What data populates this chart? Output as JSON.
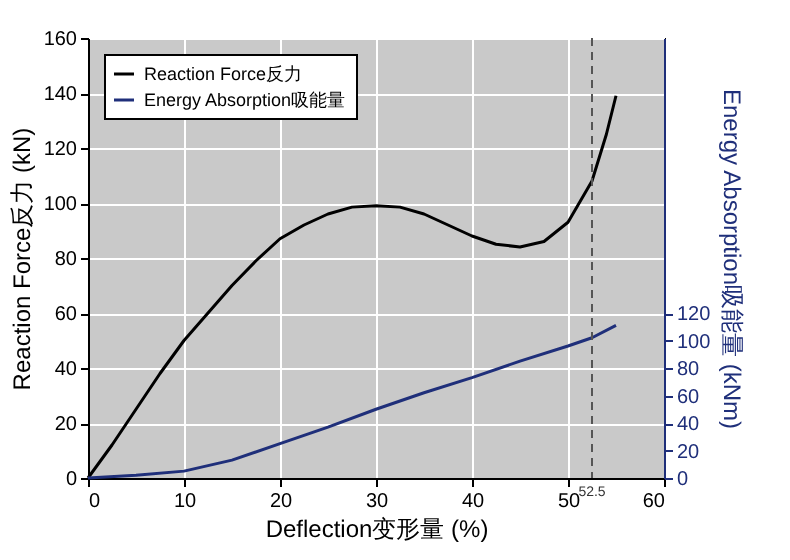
{
  "chart_data": {
    "type": "line",
    "xlabel": "Deflection变形量 (%)",
    "ylabel": "Reaction Force反力 (kN)",
    "y2label": "Energy Absorption吸能量 (kNm)",
    "xlim": [
      0,
      60
    ],
    "xticks": [
      0,
      10,
      20,
      30,
      40,
      50,
      60
    ],
    "ylim": [
      0,
      160
    ],
    "yticks": [
      0,
      20,
      40,
      60,
      80,
      100,
      120,
      140,
      160
    ],
    "y2lim": [
      0,
      320
    ],
    "y2ticks": [
      0,
      20,
      40,
      60,
      80,
      100,
      120
    ],
    "grid": true,
    "legend": "top left",
    "marker": "none",
    "line_style": "solid",
    "ref_lines": [
      {
        "axis": "x",
        "value": 52.5,
        "label": "52.5",
        "color": "#555555",
        "line_style": "dashed"
      }
    ],
    "series": [
      {
        "name": "Reaction Force反力",
        "color": "#000000",
        "x": [
          0,
          2.5,
          5,
          7.5,
          10,
          12.5,
          15,
          17.5,
          20,
          22.5,
          25,
          27.5,
          30,
          32.5,
          35,
          37.5,
          40,
          42.5,
          45,
          47.5,
          50,
          52.5,
          54,
          55
        ],
        "values": [
          0,
          12,
          25,
          38,
          50,
          60,
          70,
          79,
          87,
          92,
          96,
          98.5,
          99,
          98.5,
          96,
          92,
          88,
          85,
          84,
          86,
          93,
          108,
          125,
          139
        ]
      },
      {
        "name": "Energy Absorption吸能量",
        "color": "#1f2f7a",
        "axis": "y2",
        "x": [
          0,
          5,
          10,
          15,
          20,
          25,
          30,
          35,
          40,
          45,
          50,
          52.5,
          55
        ],
        "values": [
          0,
          2,
          5,
          13,
          25,
          37,
          50,
          62,
          73,
          85,
          96,
          102,
          111
        ]
      }
    ]
  }
}
